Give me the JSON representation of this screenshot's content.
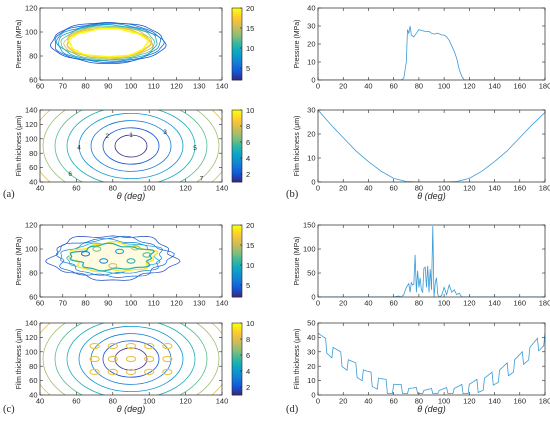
{
  "colors": {
    "axis": "#262626",
    "line": "#3a9bd6",
    "colormap_parula": [
      "#352a87",
      "#0f5cdd",
      "#1481d6",
      "#06a4ca",
      "#2eb7a4",
      "#87bf77",
      "#d1bb59",
      "#fec832",
      "#f9fb0e"
    ]
  },
  "panels": {
    "a": "(a)",
    "b": "(b)",
    "c": "(c)",
    "d": "(d)"
  },
  "chart_data": [
    {
      "id": "a-top",
      "type": "contour",
      "xlabel": "",
      "ylabel": "Pressure (MPa)",
      "xlim": [
        60,
        140
      ],
      "ylim": [
        60,
        120
      ],
      "xticks": [
        "60",
        "70",
        "80",
        "90",
        "100",
        "110",
        "120",
        "130",
        "140"
      ],
      "yticks": [
        "60",
        "80",
        "100",
        "120"
      ],
      "colorbar": {
        "range": [
          2,
          20
        ],
        "ticks": [
          "5",
          "10",
          "15",
          "20"
        ]
      },
      "contour_region": {
        "center_deg": 90,
        "half_width_deg": 25,
        "center_pressure": 91,
        "half_height": 17
      }
    },
    {
      "id": "a-bottom",
      "type": "contour",
      "xlabel": "θ (deg)",
      "ylabel": "Film thickness (μm)",
      "xlim": [
        40,
        140
      ],
      "ylim": [
        40,
        140
      ],
      "xticks": [
        "40",
        "60",
        "80",
        "100",
        "120",
        "140"
      ],
      "yticks": [
        "40",
        "60",
        "80",
        "100",
        "120",
        "140"
      ],
      "colorbar": {
        "range": [
          1,
          10
        ],
        "ticks": [
          "2",
          "4",
          "6",
          "8",
          "10"
        ]
      },
      "levels": [
        1,
        2,
        3,
        4,
        5,
        6,
        7,
        8,
        9,
        10
      ],
      "contour_labels": [
        "1",
        "2",
        "3",
        "4",
        "5",
        "6",
        "7",
        "8",
        "9",
        "10"
      ]
    },
    {
      "id": "b-top",
      "type": "line",
      "xlabel": "",
      "ylabel": "Pressure (MPa)",
      "xlim": [
        0,
        180
      ],
      "ylim": [
        0,
        40
      ],
      "xticks": [
        "0",
        "20",
        "40",
        "60",
        "80",
        "100",
        "120",
        "140",
        "160",
        "180"
      ],
      "yticks": [
        "0",
        "10",
        "20",
        "30",
        "40"
      ],
      "x": [
        0,
        60,
        66,
        68,
        70,
        71,
        72,
        73,
        74,
        76,
        78,
        80,
        82,
        85,
        88,
        90,
        92,
        95,
        98,
        100,
        102,
        104,
        106,
        108,
        110,
        112,
        114,
        116,
        120,
        180
      ],
      "y": [
        0,
        0,
        0,
        1,
        10,
        28,
        26,
        30,
        25,
        24,
        26,
        28,
        27.5,
        27,
        27,
        26,
        25.5,
        26,
        25,
        25,
        24,
        22,
        19,
        16,
        12,
        6,
        2,
        0,
        0,
        0
      ]
    },
    {
      "id": "b-bottom",
      "type": "line",
      "xlabel": "θ (deg)",
      "ylabel": "Film thickness (μm)",
      "xlim": [
        0,
        180
      ],
      "ylim": [
        0,
        30
      ],
      "xticks": [
        "0",
        "20",
        "40",
        "60",
        "80",
        "100",
        "120",
        "140",
        "160",
        "180"
      ],
      "yticks": [
        "0",
        "10",
        "20",
        "30"
      ],
      "x": [
        0,
        10,
        20,
        30,
        40,
        50,
        60,
        70,
        80,
        90,
        100,
        110,
        120,
        130,
        140,
        150,
        160,
        170,
        180
      ],
      "y": [
        30,
        24,
        18.5,
        13,
        8.5,
        4.5,
        1.5,
        0.2,
        0,
        0,
        0,
        0.2,
        1.5,
        4.5,
        8.5,
        13,
        18.5,
        24,
        29
      ]
    },
    {
      "id": "c-top",
      "type": "contour",
      "xlabel": "",
      "ylabel": "Pressure (MPa)",
      "xlim": [
        60,
        140
      ],
      "ylim": [
        60,
        120
      ],
      "xticks": [
        "60",
        "70",
        "80",
        "90",
        "100",
        "110",
        "120",
        "130",
        "140"
      ],
      "yticks": [
        "60",
        "80",
        "100",
        "120"
      ],
      "colorbar": {
        "range": [
          2,
          20
        ],
        "ticks": [
          "5",
          "10",
          "15",
          "20"
        ]
      }
    },
    {
      "id": "c-bottom",
      "type": "contour",
      "xlabel": "θ (deg)",
      "ylabel": "Film thickness (μm)",
      "xlim": [
        40,
        140
      ],
      "ylim": [
        40,
        140
      ],
      "xticks": [
        "40",
        "60",
        "80",
        "100",
        "120",
        "140"
      ],
      "yticks": [
        "40",
        "60",
        "80",
        "100",
        "120",
        "140"
      ],
      "colorbar": {
        "range": [
          1,
          10
        ],
        "ticks": [
          "2",
          "4",
          "6",
          "8",
          "10"
        ]
      }
    },
    {
      "id": "d-top",
      "type": "line",
      "xlabel": "",
      "ylabel": "Pressure (MPa)",
      "xlim": [
        0,
        180
      ],
      "ylim": [
        0,
        150
      ],
      "xticks": [
        "0",
        "20",
        "40",
        "60",
        "80",
        "100",
        "120",
        "140",
        "160",
        "180"
      ],
      "yticks": [
        "0",
        "50",
        "100",
        "150"
      ],
      "x": [
        0,
        60,
        64,
        66,
        68,
        70,
        72,
        73,
        74,
        75,
        76,
        77,
        78,
        79,
        80,
        81,
        82,
        83,
        84,
        85,
        86,
        87,
        88,
        89,
        90,
        91,
        92,
        93,
        94,
        95,
        96,
        98,
        100,
        102,
        104,
        106,
        108,
        110,
        112,
        114,
        180
      ],
      "y": [
        0,
        0,
        2,
        0,
        5,
        20,
        28,
        10,
        30,
        25,
        26,
        88,
        10,
        55,
        20,
        40,
        15,
        10,
        60,
        62,
        20,
        65,
        10,
        58,
        15,
        148,
        0,
        30,
        40,
        5,
        0,
        3,
        20,
        5,
        25,
        10,
        15,
        5,
        8,
        0,
        0
      ]
    },
    {
      "id": "d-bottom",
      "type": "line",
      "xlabel": "θ (deg)",
      "ylabel": "Film thickness (μm)",
      "xlim": [
        0,
        180
      ],
      "ylim": [
        0,
        50
      ],
      "xticks": [
        "0",
        "20",
        "40",
        "60",
        "80",
        "100",
        "120",
        "140",
        "160",
        "180"
      ],
      "yticks": [
        "0",
        "10",
        "20",
        "30",
        "40",
        "50"
      ]
    }
  ]
}
